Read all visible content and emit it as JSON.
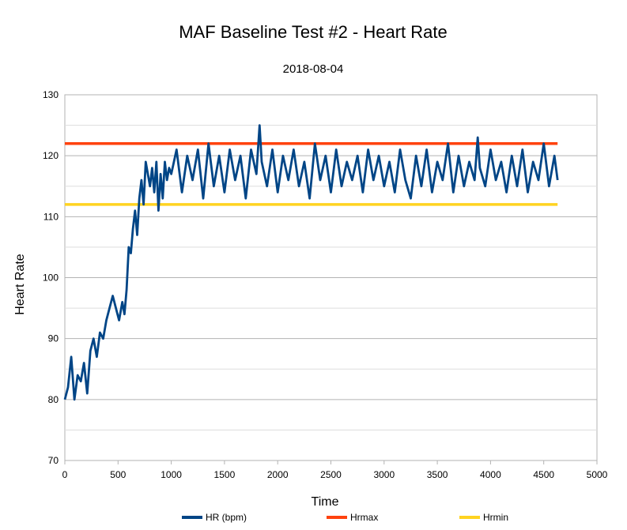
{
  "chart_data": {
    "type": "line",
    "title": "MAF Baseline Test #2 - Heart Rate",
    "subtitle": "2018-08-04",
    "xlabel": "Time",
    "ylabel": "Heart Rate",
    "xlim": [
      0,
      5000
    ],
    "ylim": [
      70,
      130
    ],
    "xticks": [
      0,
      500,
      1000,
      1500,
      2000,
      2500,
      3000,
      3500,
      4000,
      4500,
      5000
    ],
    "yticks": [
      70,
      80,
      90,
      100,
      110,
      120,
      130
    ],
    "grid": "horizontal",
    "legend_position": "bottom",
    "series": [
      {
        "name": "HR (bpm)",
        "color": "#004586",
        "x": [
          0,
          30,
          60,
          90,
          120,
          150,
          180,
          210,
          240,
          270,
          300,
          330,
          360,
          390,
          420,
          450,
          480,
          510,
          540,
          560,
          580,
          600,
          620,
          640,
          660,
          680,
          700,
          720,
          740,
          760,
          780,
          800,
          820,
          840,
          860,
          880,
          900,
          920,
          940,
          960,
          980,
          1000,
          1050,
          1100,
          1150,
          1200,
          1250,
          1300,
          1350,
          1400,
          1450,
          1500,
          1550,
          1600,
          1650,
          1700,
          1750,
          1800,
          1830,
          1850,
          1900,
          1950,
          2000,
          2050,
          2100,
          2150,
          2200,
          2250,
          2300,
          2350,
          2400,
          2450,
          2500,
          2550,
          2600,
          2650,
          2700,
          2750,
          2800,
          2850,
          2900,
          2950,
          3000,
          3050,
          3100,
          3150,
          3200,
          3250,
          3300,
          3350,
          3400,
          3450,
          3500,
          3550,
          3600,
          3650,
          3700,
          3750,
          3800,
          3850,
          3880,
          3900,
          3950,
          4000,
          4050,
          4100,
          4150,
          4200,
          4250,
          4300,
          4350,
          4400,
          4450,
          4500,
          4550,
          4600,
          4630
        ],
        "values": [
          80,
          82,
          87,
          80,
          84,
          83,
          86,
          81,
          88,
          90,
          87,
          91,
          90,
          93,
          95,
          97,
          95,
          93,
          96,
          94,
          98,
          105,
          104,
          108,
          111,
          107,
          113,
          116,
          112,
          119,
          117,
          115,
          118,
          114,
          119,
          111,
          117,
          113,
          119,
          116,
          118,
          117,
          121,
          114,
          120,
          116,
          121,
          113,
          122,
          115,
          120,
          114,
          121,
          116,
          120,
          113,
          121,
          117,
          125,
          119,
          115,
          121,
          114,
          120,
          116,
          121,
          115,
          119,
          113,
          122,
          116,
          120,
          114,
          121,
          115,
          119,
          116,
          120,
          114,
          121,
          116,
          120,
          115,
          119,
          114,
          121,
          116,
          113,
          120,
          115,
          121,
          114,
          119,
          116,
          122,
          114,
          120,
          115,
          119,
          116,
          123,
          118,
          115,
          121,
          116,
          119,
          114,
          120,
          115,
          121,
          114,
          119,
          116,
          122,
          115,
          120,
          116
        ]
      },
      {
        "name": "Hrmax",
        "color": "#ff420e",
        "x": [
          0,
          4630
        ],
        "values": [
          122,
          122
        ]
      },
      {
        "name": "Hrmin",
        "color": "#ffd320",
        "x": [
          0,
          4630
        ],
        "values": [
          112,
          112
        ]
      }
    ]
  }
}
